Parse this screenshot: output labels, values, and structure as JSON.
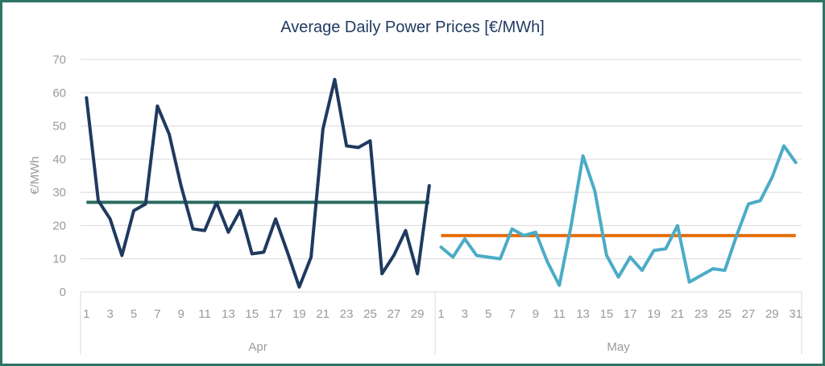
{
  "chart_data": {
    "type": "line",
    "title": "Average Daily Power Prices [€/MWh]",
    "ylabel": "€/MWh",
    "xlabel": "",
    "ylim": [
      0,
      70
    ],
    "yticks": [
      0,
      10,
      20,
      30,
      40,
      50,
      60,
      70
    ],
    "grid": true,
    "groups": [
      {
        "name": "Apr",
        "days": 30,
        "tick_labels": [
          "1",
          "3",
          "5",
          "7",
          "9",
          "11",
          "13",
          "15",
          "17",
          "19",
          "21",
          "23",
          "25",
          "27",
          "29"
        ]
      },
      {
        "name": "May",
        "days": 31,
        "tick_labels": [
          "1",
          "3",
          "5",
          "7",
          "9",
          "11",
          "13",
          "15",
          "17",
          "19",
          "21",
          "23",
          "25",
          "27",
          "29",
          "31"
        ]
      }
    ],
    "series": [
      {
        "group": "Apr",
        "color": "#1f3a5f",
        "values": [
          58.5,
          27.5,
          22,
          11,
          24.5,
          26.5,
          56,
          47.5,
          32,
          19,
          18.5,
          27,
          18,
          24.5,
          11.5,
          12,
          22,
          12,
          1.5,
          10.5,
          49,
          64,
          44,
          43.5,
          45.5,
          5.5,
          11,
          18.5,
          5.5,
          32
        ]
      },
      {
        "group": "May",
        "color": "#4bacc6",
        "values": [
          13.5,
          10.5,
          16,
          11,
          10.5,
          10,
          19,
          17,
          18,
          9,
          2,
          20,
          41,
          30.5,
          11,
          4.5,
          10.5,
          6.5,
          12.5,
          13,
          20,
          3,
          5,
          7,
          6.5,
          17,
          26.5,
          27.5,
          34.5,
          44,
          39
        ]
      }
    ],
    "averages": [
      {
        "group": "Apr",
        "value": 27,
        "color": "#2a6b5e"
      },
      {
        "group": "May",
        "value": 17,
        "color": "#e46c0a"
      }
    ]
  }
}
